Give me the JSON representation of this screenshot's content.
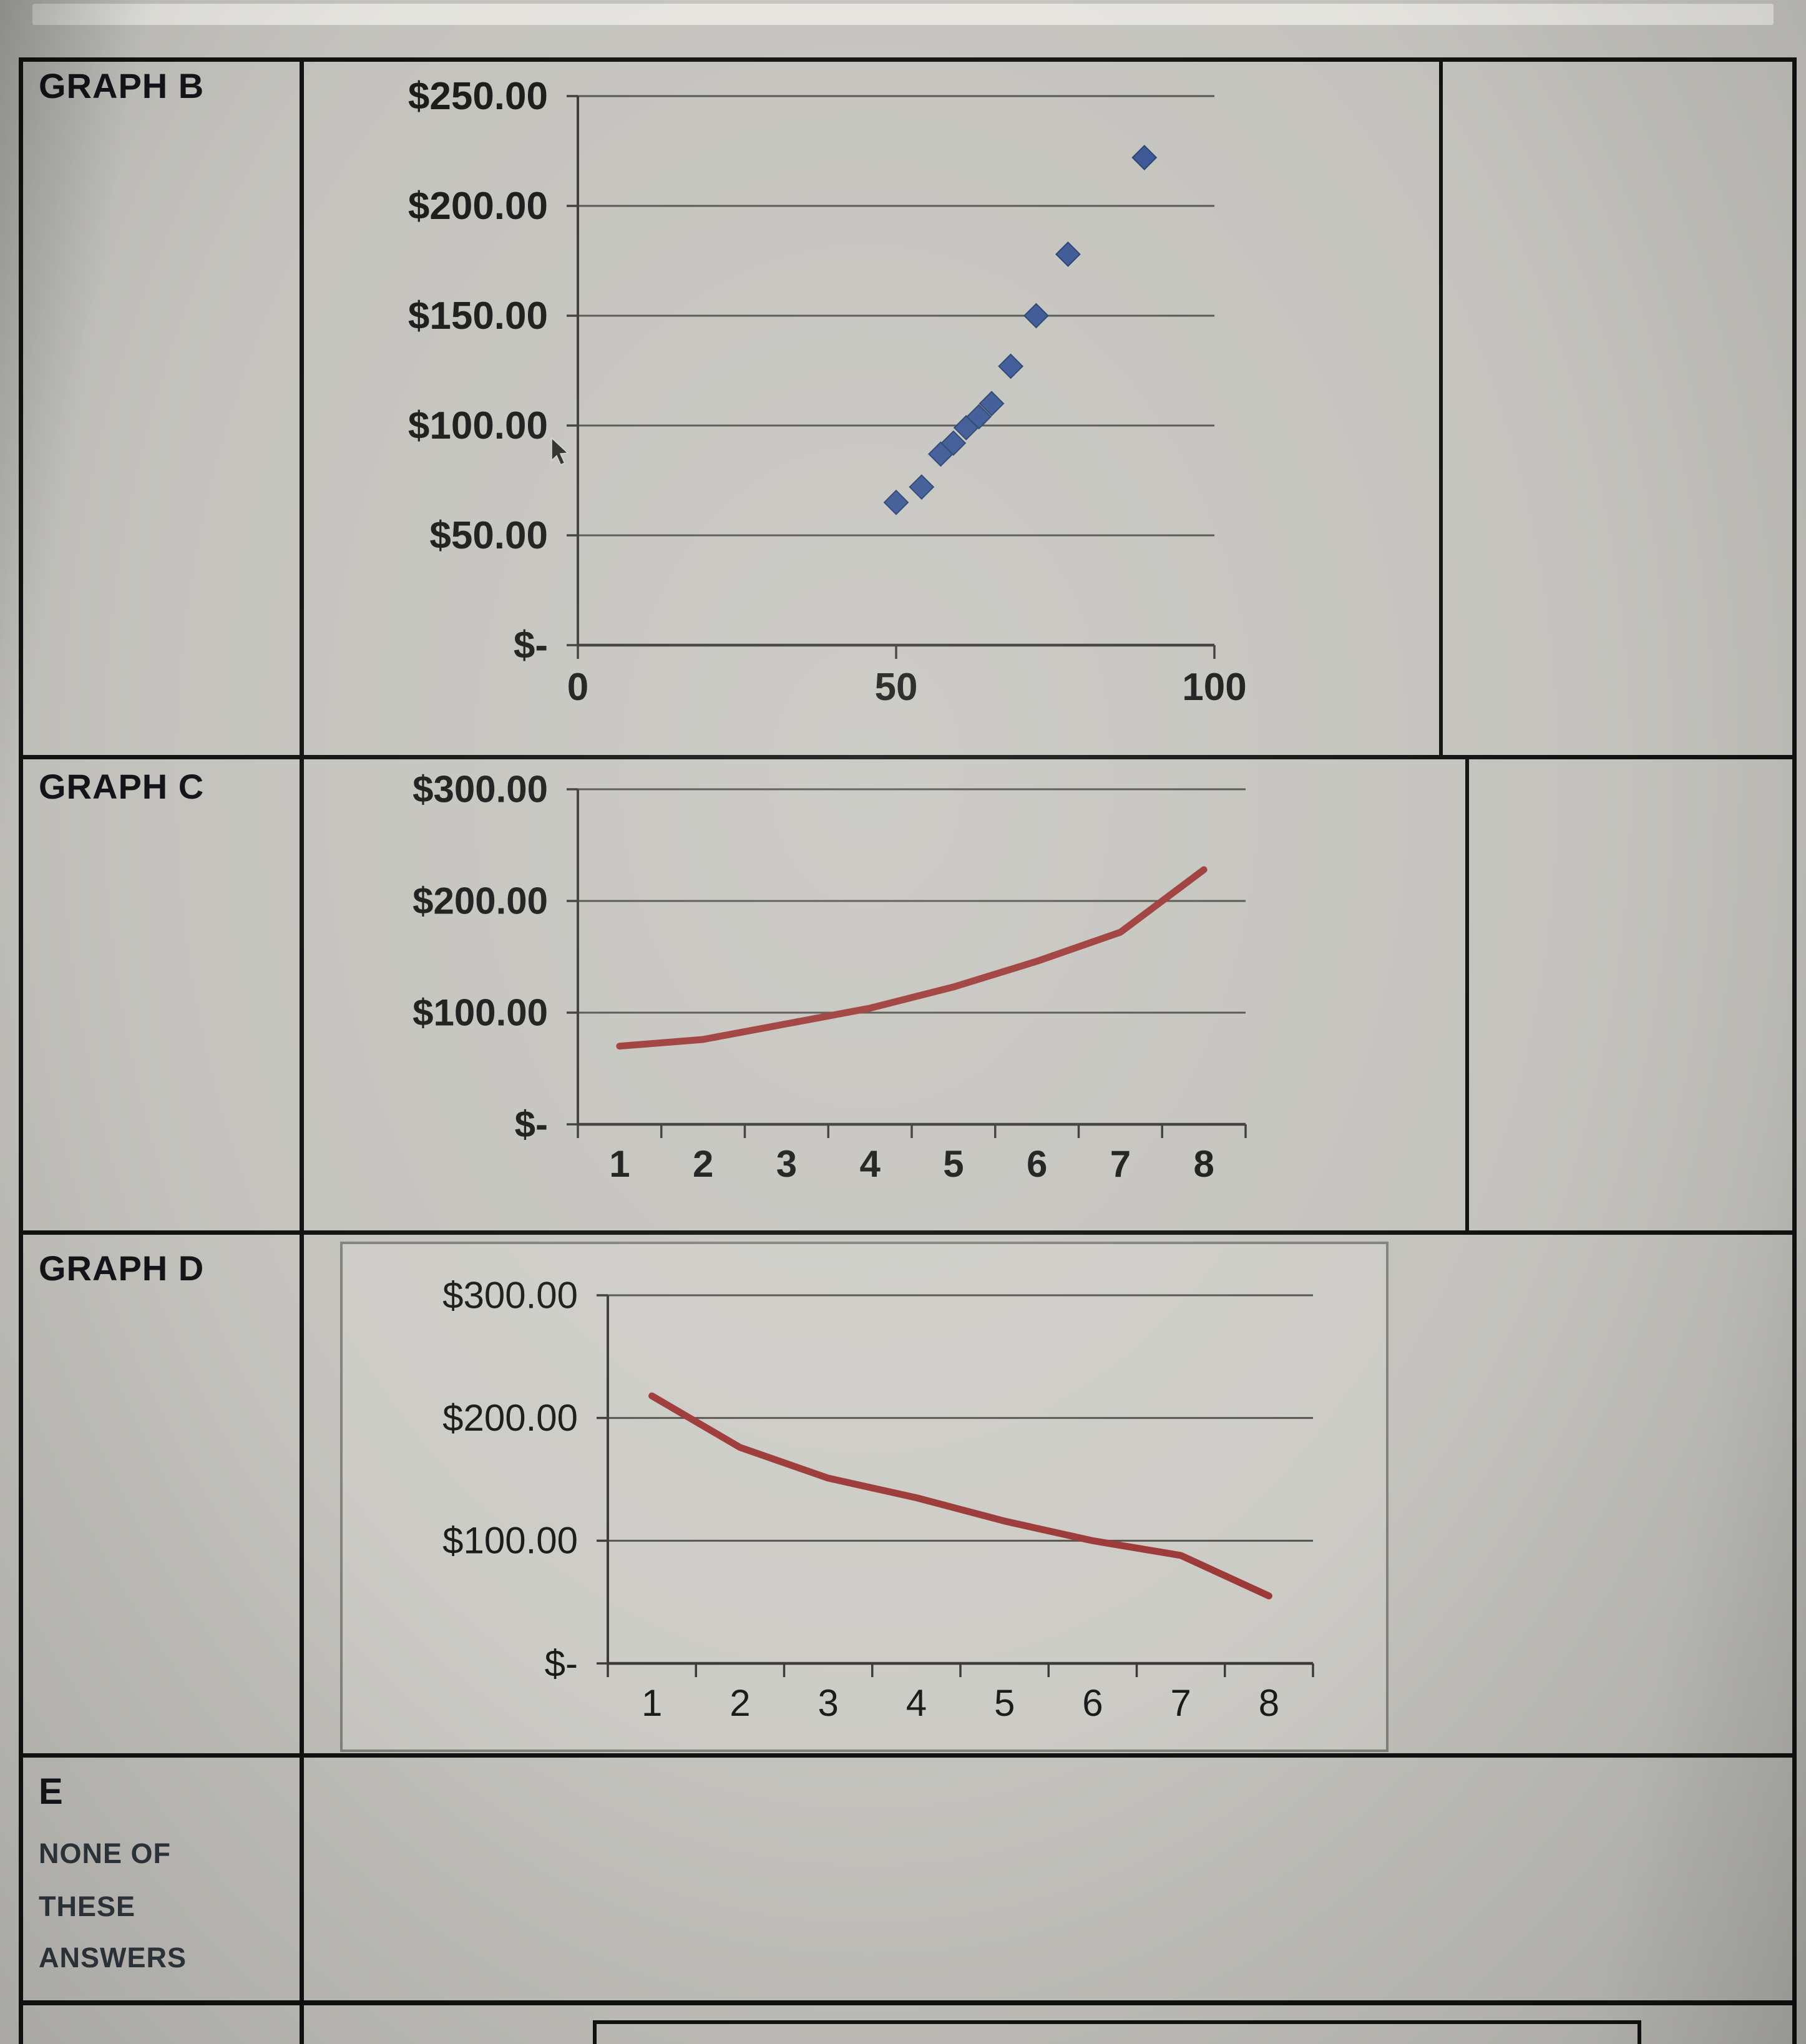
{
  "labels": {
    "graph_b": "GRAPH B",
    "graph_c": "GRAPH C",
    "graph_d": "GRAPH D",
    "option_e_letter": "E",
    "option_e_line1": "NONE OF",
    "option_e_line2": "THESE",
    "option_e_line3": "ANSWERS"
  },
  "colors": {
    "scatter_point": "#3a5795",
    "scatter_point_edge": "#27406f",
    "line_red": "#9e3a38",
    "grid": "#55544f",
    "axis": "#3c3b37",
    "text": "#1b1b1b"
  },
  "chart_data": [
    {
      "id": "graph_b",
      "type": "scatter",
      "title": "",
      "xlabel": "",
      "ylabel": "",
      "x": [
        50,
        54,
        57,
        59,
        61,
        63,
        65,
        68,
        72,
        77,
        89
      ],
      "y": [
        65,
        72,
        87,
        92,
        99,
        104,
        110,
        127,
        150,
        178,
        222
      ],
      "xlim": [
        0,
        100
      ],
      "ylim": [
        0,
        250
      ],
      "x_ticks": [
        0,
        50,
        100
      ],
      "x_tick_labels": [
        "0",
        "50",
        "100"
      ],
      "x_tick_mode": "on",
      "y_ticks": [
        0,
        50,
        100,
        150,
        200,
        250
      ],
      "y_tick_labels": [
        "$-",
        "$50.00",
        "$100.00",
        "$150.00",
        "$200.00",
        "$250.00"
      ],
      "grid": "horizontal",
      "marker": "diamond",
      "legend": "none"
    },
    {
      "id": "graph_c",
      "type": "line",
      "title": "",
      "xlabel": "",
      "ylabel": "",
      "x": [
        1,
        2,
        3,
        4,
        5,
        6,
        7,
        8
      ],
      "values": [
        70,
        76,
        90,
        104,
        123,
        146,
        172,
        228
      ],
      "xlim": [
        0.5,
        8.5
      ],
      "ylim": [
        0,
        300
      ],
      "x_ticks": [
        1,
        2,
        3,
        4,
        5,
        6,
        7,
        8
      ],
      "x_tick_labels": [
        "1",
        "2",
        "3",
        "4",
        "5",
        "6",
        "7",
        "8"
      ],
      "x_tick_mode": "between",
      "y_ticks": [
        0,
        100,
        200,
        300
      ],
      "y_tick_labels": [
        "$-",
        "$100.00",
        "$200.00",
        "$300.00"
      ],
      "grid": "horizontal",
      "legend": "none"
    },
    {
      "id": "graph_d",
      "type": "line",
      "title": "",
      "xlabel": "",
      "ylabel": "",
      "x": [
        1,
        2,
        3,
        4,
        5,
        6,
        7,
        8
      ],
      "values": [
        218,
        176,
        151,
        135,
        116,
        100,
        88,
        55
      ],
      "xlim": [
        0.5,
        8.5
      ],
      "ylim": [
        0,
        300
      ],
      "x_ticks": [
        1,
        2,
        3,
        4,
        5,
        6,
        7,
        8
      ],
      "x_tick_labels": [
        "1",
        "2",
        "3",
        "4",
        "5",
        "6",
        "7",
        "8"
      ],
      "x_tick_mode": "between",
      "y_ticks": [
        0,
        100,
        200,
        300
      ],
      "y_tick_labels": [
        "$-",
        "$100.00",
        "$200.00",
        "$300.00"
      ],
      "grid": "horizontal",
      "legend": "none"
    }
  ]
}
